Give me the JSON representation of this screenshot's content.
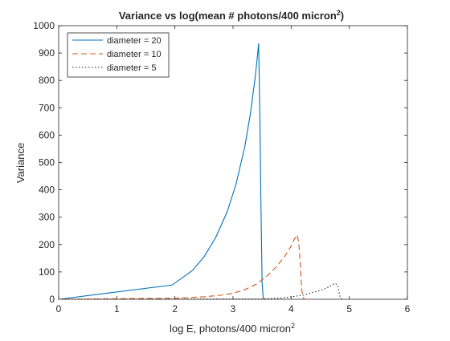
{
  "chart_data": {
    "type": "line",
    "title_main": "Variance vs log(mean # photons/400 micron",
    "title_sup": "2",
    "title_end": ")",
    "xlabel_main": "log E, photons/400 micron",
    "xlabel_sup": "2",
    "ylabel": "Variance",
    "xlim": [
      0,
      6
    ],
    "ylim": [
      0,
      1000
    ],
    "xticks": [
      "0",
      "1",
      "2",
      "3",
      "4",
      "5",
      "6"
    ],
    "yticks": [
      "0",
      "100",
      "200",
      "300",
      "400",
      "500",
      "600",
      "700",
      "800",
      "900",
      "1000"
    ],
    "grid": false,
    "legend_position": "top-left",
    "series": [
      {
        "name": "diameter = 20",
        "color": "#0072BD",
        "dash": "solid",
        "x": [
          0.0,
          1.95,
          2.3,
          2.5,
          2.7,
          2.9,
          3.05,
          3.2,
          3.3,
          3.38,
          3.42,
          3.44,
          3.46,
          3.48,
          3.5,
          3.52,
          3.54
        ],
        "y": [
          0,
          52,
          105,
          155,
          225,
          320,
          420,
          555,
          680,
          810,
          890,
          935,
          700,
          350,
          60,
          4,
          0
        ]
      },
      {
        "name": "diameter = 10",
        "color": "#D95319",
        "dash": "dashed",
        "x": [
          0.0,
          1.0,
          2.0,
          2.5,
          2.8,
          3.0,
          3.2,
          3.4,
          3.6,
          3.75,
          3.9,
          4.0,
          4.06,
          4.1,
          4.13,
          4.16,
          4.18,
          4.2,
          4.22,
          4.25
        ],
        "y": [
          0,
          2,
          4,
          9,
          15,
          22,
          35,
          55,
          88,
          120,
          160,
          195,
          222,
          235,
          210,
          120,
          40,
          10,
          2,
          0
        ]
      },
      {
        "name": "diameter = 5",
        "color": "#262626",
        "dash": "dotted",
        "x": [
          0.0,
          3.5,
          3.8,
          4.0,
          4.2,
          4.4,
          4.55,
          4.65,
          4.72,
          4.76,
          4.8,
          4.82,
          4.84,
          4.86,
          4.9
        ],
        "y": [
          0,
          1,
          4,
          9,
          15,
          26,
          36,
          45,
          55,
          58,
          50,
          30,
          10,
          2,
          0
        ]
      }
    ]
  }
}
